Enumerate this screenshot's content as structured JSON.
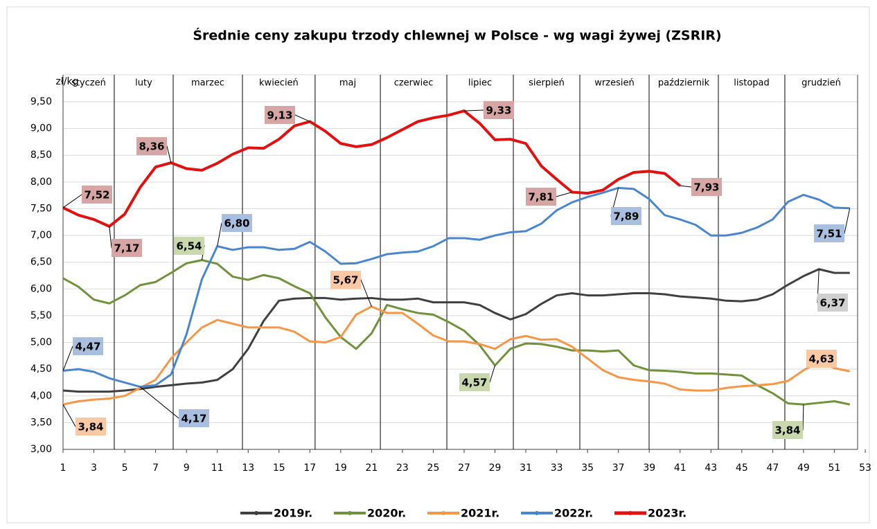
{
  "chart_data": {
    "type": "line",
    "title": "Średnie ceny zakupu trzody chlewnej w Polsce - wg wagi żywej (ZSRIR)",
    "y_label": "zł/kg",
    "months": [
      "styczeń",
      "luty",
      "marzec",
      "kwiecień",
      "maj",
      "czerwiec",
      "lipiec",
      "sierpień",
      "wrzesień",
      "październik",
      "listopad",
      "grudzień"
    ],
    "month_bounds": [
      4.32,
      8.14,
      12.63,
      17.34,
      21.57,
      25.88,
      30.19,
      34.5,
      38.99,
      43.48,
      47.79
    ],
    "x": [
      1,
      2,
      3,
      4,
      5,
      6,
      7,
      8,
      9,
      10,
      11,
      12,
      13,
      14,
      15,
      16,
      17,
      18,
      19,
      20,
      21,
      22,
      23,
      24,
      25,
      26,
      27,
      28,
      29,
      30,
      31,
      32,
      33,
      34,
      35,
      36,
      37,
      38,
      39,
      40,
      41,
      42,
      43,
      44,
      45,
      46,
      47,
      48,
      49,
      50,
      51,
      52
    ],
    "xlim": [
      1,
      53
    ],
    "xticks": [
      1,
      3,
      5,
      7,
      9,
      11,
      13,
      15,
      17,
      19,
      21,
      23,
      25,
      27,
      29,
      31,
      33,
      35,
      37,
      39,
      41,
      43,
      45,
      47,
      49,
      51,
      53
    ],
    "ylim": [
      3,
      9.5
    ],
    "yticks": [
      {
        "value": 3,
        "label": "3,00"
      },
      {
        "value": 3.5,
        "label": "3,50"
      },
      {
        "value": 4,
        "label": "4,00"
      },
      {
        "value": 4.5,
        "label": "4,50"
      },
      {
        "value": 5,
        "label": "5,00"
      },
      {
        "value": 5.5,
        "label": "5,50"
      },
      {
        "value": 6,
        "label": "6,00"
      },
      {
        "value": 6.5,
        "label": "6,50"
      },
      {
        "value": 7,
        "label": "7,00"
      },
      {
        "value": 7.5,
        "label": "7,50"
      },
      {
        "value": 8,
        "label": "8,00"
      },
      {
        "value": 8.5,
        "label": "8,50"
      },
      {
        "value": 9,
        "label": "9,00"
      },
      {
        "value": 9.5,
        "label": "9,50"
      }
    ],
    "grid": true,
    "legend": "bottom",
    "series": [
      {
        "name": "2019r.",
        "color": "#404040",
        "label_fill": "#d0d0d0",
        "values": [
          4.1,
          4.08,
          4.08,
          4.08,
          4.1,
          4.13,
          4.17,
          4.2,
          4.23,
          4.25,
          4.3,
          4.5,
          4.88,
          5.4,
          5.78,
          5.82,
          5.83,
          5.83,
          5.8,
          5.82,
          5.83,
          5.8,
          5.8,
          5.82,
          5.75,
          5.75,
          5.75,
          5.7,
          5.55,
          5.43,
          5.53,
          5.72,
          5.88,
          5.92,
          5.88,
          5.88,
          5.9,
          5.92,
          5.92,
          5.9,
          5.86,
          5.84,
          5.82,
          5.78,
          5.77,
          5.8,
          5.9,
          6.08,
          6.24,
          6.37,
          6.3,
          6.3
        ],
        "value_labels": [
          null,
          null,
          null,
          null,
          null,
          null,
          null,
          null,
          null,
          null,
          null,
          null,
          null,
          null,
          null,
          null,
          null,
          null,
          null,
          null,
          null,
          null,
          null,
          null,
          null,
          null,
          null,
          null,
          null,
          null,
          null,
          null,
          null,
          null,
          null,
          null,
          null,
          null,
          null,
          null,
          null,
          null,
          null,
          null,
          null,
          null,
          null,
          null,
          null,
          "6,37",
          null,
          null
        ]
      },
      {
        "name": "2020r.",
        "color": "#70923a",
        "label_fill": "#c9d8ad",
        "values": [
          6.2,
          6.04,
          5.8,
          5.73,
          5.88,
          6.07,
          6.13,
          6.3,
          6.48,
          6.54,
          6.47,
          6.23,
          6.17,
          6.26,
          6.2,
          6.05,
          5.92,
          5.47,
          5.1,
          4.88,
          5.17,
          5.7,
          5.62,
          5.55,
          5.52,
          5.38,
          5.22,
          4.95,
          4.57,
          4.88,
          4.98,
          4.97,
          4.92,
          4.85,
          4.85,
          4.83,
          4.85,
          4.57,
          4.48,
          4.47,
          4.45,
          4.42,
          4.42,
          4.4,
          4.38,
          4.2,
          4.05,
          3.86,
          3.84,
          3.87,
          3.9,
          3.84
        ],
        "value_labels": [
          null,
          null,
          null,
          null,
          null,
          null,
          null,
          null,
          null,
          "6,54",
          null,
          null,
          null,
          null,
          null,
          null,
          null,
          null,
          null,
          null,
          null,
          null,
          null,
          null,
          null,
          null,
          null,
          null,
          "4,57",
          null,
          null,
          null,
          null,
          null,
          null,
          null,
          null,
          null,
          null,
          null,
          null,
          null,
          null,
          null,
          null,
          null,
          null,
          null,
          "3,84",
          null,
          null,
          null
        ]
      },
      {
        "name": "2021r.",
        "color": "#f79646",
        "label_fill": "#fbc8a4",
        "values": [
          3.84,
          3.9,
          3.93,
          3.95,
          4.0,
          4.15,
          4.3,
          4.7,
          5.0,
          5.28,
          5.42,
          5.35,
          5.28,
          5.28,
          5.28,
          5.2,
          5.02,
          5.0,
          5.1,
          5.52,
          5.67,
          5.55,
          5.55,
          5.35,
          5.13,
          5.02,
          5.02,
          4.97,
          4.88,
          5.06,
          5.12,
          5.05,
          5.06,
          4.92,
          4.7,
          4.48,
          4.35,
          4.3,
          4.27,
          4.23,
          4.12,
          4.1,
          4.1,
          4.15,
          4.18,
          4.2,
          4.22,
          4.28,
          4.48,
          4.63,
          4.52,
          4.46
        ],
        "value_labels": [
          "3,84",
          null,
          null,
          null,
          null,
          null,
          null,
          null,
          null,
          null,
          null,
          null,
          null,
          null,
          null,
          null,
          null,
          null,
          null,
          null,
          "5,67",
          null,
          null,
          null,
          null,
          null,
          null,
          null,
          null,
          null,
          null,
          null,
          null,
          null,
          null,
          null,
          null,
          null,
          null,
          null,
          null,
          null,
          null,
          null,
          null,
          null,
          null,
          null,
          null,
          "4,63",
          null,
          null
        ]
      },
      {
        "name": "2022r.",
        "color": "#4a86d0",
        "label_fill": "#a9bfdf",
        "values": [
          4.47,
          4.5,
          4.45,
          4.33,
          4.25,
          4.17,
          4.2,
          4.4,
          5.15,
          6.18,
          6.8,
          6.73,
          6.78,
          6.78,
          6.73,
          6.75,
          6.88,
          6.7,
          6.47,
          6.48,
          6.56,
          6.65,
          6.68,
          6.7,
          6.8,
          6.95,
          6.95,
          6.92,
          7.0,
          7.06,
          7.08,
          7.22,
          7.47,
          7.62,
          7.72,
          7.8,
          7.89,
          7.87,
          7.68,
          7.38,
          7.3,
          7.2,
          7.0,
          7.0,
          7.05,
          7.15,
          7.3,
          7.63,
          7.76,
          7.67,
          7.52,
          7.51
        ],
        "value_labels": [
          "4,47",
          null,
          null,
          null,
          null,
          "4,17",
          null,
          null,
          null,
          null,
          "6,80",
          null,
          null,
          null,
          null,
          null,
          null,
          null,
          null,
          null,
          null,
          null,
          null,
          null,
          null,
          null,
          null,
          null,
          null,
          null,
          null,
          null,
          null,
          null,
          null,
          null,
          "7,89",
          null,
          null,
          null,
          null,
          null,
          null,
          null,
          null,
          null,
          null,
          null,
          null,
          null,
          null,
          "7,51"
        ]
      },
      {
        "name": "2023r.",
        "color": "#e31010",
        "label_fill": "#d8a5a5",
        "values": [
          7.52,
          7.38,
          7.3,
          7.17,
          7.4,
          7.9,
          8.28,
          8.36,
          8.25,
          8.22,
          8.35,
          8.52,
          8.64,
          8.63,
          8.8,
          9.05,
          9.13,
          8.95,
          8.72,
          8.66,
          8.7,
          8.83,
          8.98,
          9.13,
          9.2,
          9.25,
          9.33,
          9.1,
          8.79,
          8.8,
          8.72,
          8.3,
          8.05,
          7.81,
          7.79,
          7.85,
          8.05,
          8.18,
          8.2,
          8.16,
          7.93,
          null,
          null,
          null,
          null,
          null,
          null,
          null,
          null,
          null,
          null,
          null
        ],
        "value_labels": [
          "7,52",
          null,
          null,
          "7,17",
          null,
          null,
          null,
          "8,36",
          null,
          null,
          null,
          null,
          null,
          null,
          null,
          null,
          "9,13",
          null,
          null,
          null,
          null,
          null,
          null,
          null,
          null,
          null,
          "9,33",
          null,
          null,
          null,
          null,
          null,
          null,
          "7,81",
          null,
          null,
          null,
          null,
          null,
          null,
          "7,93",
          null,
          null,
          null,
          null,
          null,
          null,
          null,
          null,
          null,
          null,
          null
        ]
      }
    ]
  }
}
